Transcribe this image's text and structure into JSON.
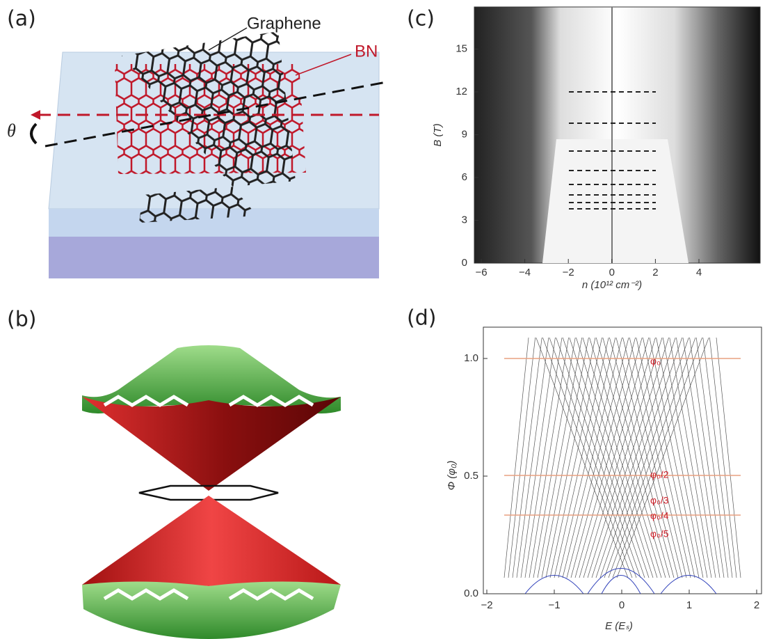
{
  "panels": [
    {
      "label": "(a)",
      "annotations": [
        "Graphene",
        "BN",
        "θ"
      ]
    },
    {
      "label": "(b)"
    },
    {
      "label": "(c)",
      "x_axis": {
        "label": "n (10¹² cm⁻²)",
        "ticks": [
          "−6",
          "−4",
          "−2",
          "0",
          "2",
          "4"
        ]
      },
      "y_axis": {
        "label": "B (T)",
        "ticks": [
          "0",
          "3",
          "6",
          "9",
          "12",
          "15"
        ]
      }
    },
    {
      "label": "(d)",
      "x_axis": {
        "label": "E (Eₛ)",
        "ticks": [
          "−2",
          "−1",
          "0",
          "1",
          "2"
        ]
      },
      "y_axis": {
        "label": "Φ (φ₀)",
        "ticks": [
          "0.0",
          "0.5",
          "1.0"
        ]
      },
      "annotations": [
        "φ₀",
        "φ₀/2",
        "φ₀/3",
        "φ₀/4",
        "φ₀/5"
      ]
    }
  ]
}
